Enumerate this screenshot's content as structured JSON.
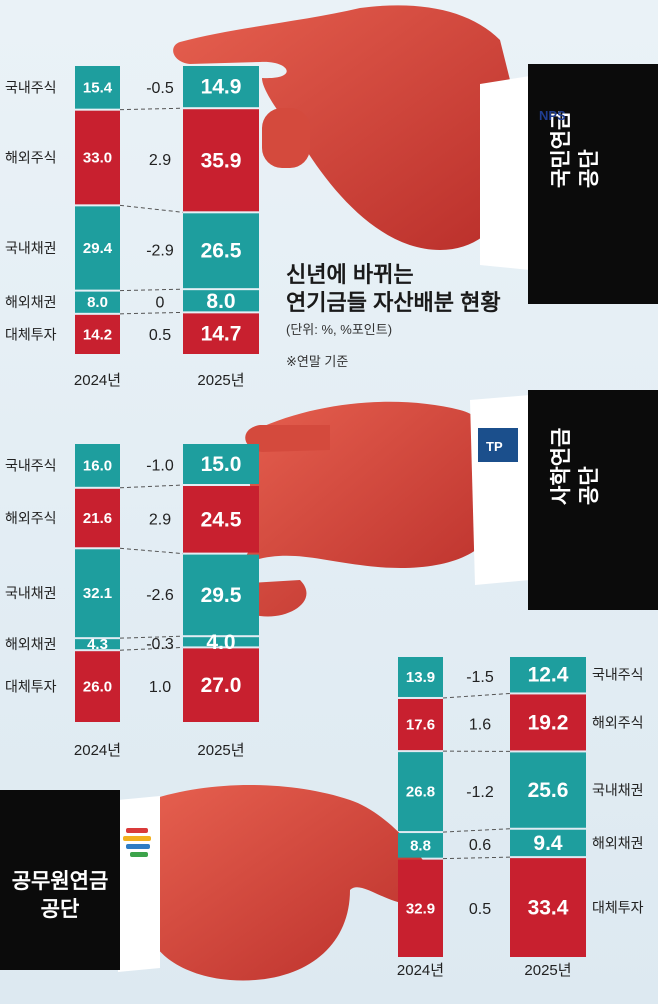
{
  "title_lines": [
    "신년에 바뀌는",
    "연기금들 자산배분 현황"
  ],
  "unit_note": "(단위: %, %포인트)",
  "basis_note": "※연말 기준",
  "logos": {
    "nps": "NPS",
    "tp": "TP"
  },
  "colors": {
    "teal": "#1e9e9e",
    "red": "#c8202f",
    "black": "#0b0b0b",
    "skin": "#d8453a"
  },
  "chart_data": [
    {
      "type": "bar",
      "organization": "국민연금공단",
      "org_lines": [
        "국민연금",
        "공단"
      ],
      "x": [
        "2024년",
        "2025년"
      ],
      "categories": [
        "국내주식",
        "해외주식",
        "국내채권",
        "해외채권",
        "대체투자"
      ],
      "values_2024": [
        15.4,
        33.0,
        29.4,
        8.0,
        14.2
      ],
      "values_2025": [
        14.9,
        35.9,
        26.5,
        8.0,
        14.7
      ],
      "changes": [
        "-0.5",
        "2.9",
        "-2.9",
        "0",
        "0.5"
      ],
      "labels_2024": [
        "15.4",
        "33.0",
        "29.4",
        "8.0",
        "14.2"
      ],
      "labels_2025": [
        "14.9",
        "35.9",
        "26.5",
        "8.0",
        "14.7"
      ]
    },
    {
      "type": "bar",
      "organization": "사학연금공단",
      "org_lines": [
        "사학연금",
        "공단"
      ],
      "x": [
        "2024년",
        "2025년"
      ],
      "categories": [
        "국내주식",
        "해외주식",
        "국내채권",
        "해외채권",
        "대체투자"
      ],
      "values_2024": [
        16.0,
        21.6,
        32.1,
        4.3,
        26.0
      ],
      "values_2025": [
        15.0,
        24.5,
        29.5,
        4.0,
        27.0
      ],
      "changes": [
        "-1.0",
        "2.9",
        "-2.6",
        "-0.3",
        "1.0"
      ],
      "labels_2024": [
        "16.0",
        "21.6",
        "32.1",
        "4.3",
        "26.0"
      ],
      "labels_2025": [
        "15.0",
        "24.5",
        "29.5",
        "4.0",
        "27.0"
      ]
    },
    {
      "type": "bar",
      "organization": "공무원연금공단",
      "org_lines": [
        "공무원연금",
        "공단"
      ],
      "x": [
        "2024년",
        "2025년"
      ],
      "categories": [
        "국내주식",
        "해외주식",
        "국내채권",
        "해외채권",
        "대체투자"
      ],
      "values_2024": [
        13.9,
        17.6,
        26.8,
        8.8,
        32.9
      ],
      "values_2025": [
        12.4,
        19.2,
        25.6,
        9.4,
        33.4
      ],
      "changes": [
        "-1.5",
        "1.6",
        "-1.2",
        "0.6",
        "0.5"
      ],
      "labels_2024": [
        "13.9",
        "17.6",
        "26.8",
        "8.8",
        "32.9"
      ],
      "labels_2025": [
        "12.4",
        "19.2",
        "25.6",
        "9.4",
        "33.4"
      ]
    }
  ]
}
